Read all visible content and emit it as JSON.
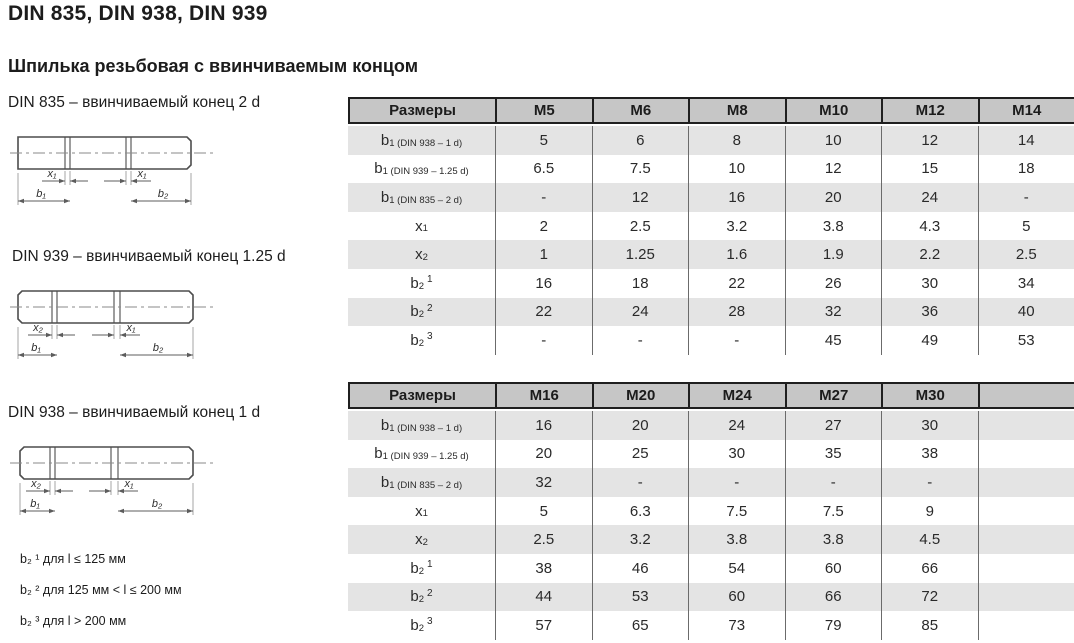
{
  "page": {
    "title": "DIN 835, DIN 938, DIN 939",
    "subtitle": "Шпилька резьбовая с ввинчиваемым концом"
  },
  "drawings": [
    {
      "caption": "DIN 835 – ввинчиваемый конец 2 d",
      "dim_x_left": "x₁",
      "dim_x_right": "x₁",
      "dim_b_left": "b₁",
      "dim_b_right": "b₂"
    },
    {
      "caption": "DIN 939 – ввинчиваемый конец 1.25 d",
      "dim_x_left": "x₂",
      "dim_x_right": "x₁",
      "dim_b_left": "b₁",
      "dim_b_right": "b₂"
    },
    {
      "caption": "DIN 938 – ввинчиваемый конец 1 d",
      "dim_x_left": "x₂",
      "dim_x_right": "x₁",
      "dim_b_left": "b₁",
      "dim_b_right": "b₂"
    }
  ],
  "footnotes": [
    "b₂ ¹ для l ≤ 125 мм",
    "b₂ ² для 125 мм < l ≤ 200 мм",
    "b₂ ³ для l > 200 мм"
  ],
  "colors": {
    "header_bg": "#c6c6c6",
    "row_alt_bg": "#e4e4e4",
    "border_dark": "#1f1f1f",
    "grid_line": "#6b6b6b"
  },
  "tables": [
    {
      "columns": [
        "Размеры",
        "M5",
        "M6",
        "M8",
        "M10",
        "M12",
        "M14"
      ],
      "rows": [
        {
          "label": {
            "base": "b",
            "sub": "1 (DIN 938 – 1 d)"
          },
          "values": [
            "5",
            "6",
            "8",
            "10",
            "12",
            "14"
          ]
        },
        {
          "label": {
            "base": "b",
            "sub": "1 (DIN 939 – 1.25 d)"
          },
          "values": [
            "6.5",
            "7.5",
            "10",
            "12",
            "15",
            "18"
          ]
        },
        {
          "label": {
            "base": "b",
            "sub": "1 (DIN 835 – 2 d)"
          },
          "values": [
            "-",
            "12",
            "16",
            "20",
            "24",
            "-"
          ]
        },
        {
          "label": {
            "base": "x",
            "sub": "1"
          },
          "values": [
            "2",
            "2.5",
            "3.2",
            "3.8",
            "4.3",
            "5"
          ]
        },
        {
          "label": {
            "base": "x",
            "sub": "2"
          },
          "values": [
            "1",
            "1.25",
            "1.6",
            "1.9",
            "2.2",
            "2.5"
          ]
        },
        {
          "label": {
            "base": "b",
            "sub": "2",
            "sup": "1"
          },
          "values": [
            "16",
            "18",
            "22",
            "26",
            "30",
            "34"
          ]
        },
        {
          "label": {
            "base": "b",
            "sub": "2",
            "sup": "2"
          },
          "values": [
            "22",
            "24",
            "28",
            "32",
            "36",
            "40"
          ]
        },
        {
          "label": {
            "base": "b",
            "sub": "2",
            "sup": "3"
          },
          "values": [
            "-",
            "-",
            "-",
            "45",
            "49",
            "53"
          ]
        }
      ]
    },
    {
      "columns": [
        "Размеры",
        "M16",
        "M20",
        "M24",
        "M27",
        "M30",
        ""
      ],
      "rows": [
        {
          "label": {
            "base": "b",
            "sub": "1 (DIN 938 – 1 d)"
          },
          "values": [
            "16",
            "20",
            "24",
            "27",
            "30",
            ""
          ]
        },
        {
          "label": {
            "base": "b",
            "sub": "1 (DIN 939 – 1.25 d)"
          },
          "values": [
            "20",
            "25",
            "30",
            "35",
            "38",
            ""
          ]
        },
        {
          "label": {
            "base": "b",
            "sub": "1 (DIN 835 – 2 d)"
          },
          "values": [
            "32",
            "-",
            "-",
            "-",
            "-",
            ""
          ]
        },
        {
          "label": {
            "base": "x",
            "sub": "1"
          },
          "values": [
            "5",
            "6.3",
            "7.5",
            "7.5",
            "9",
            ""
          ]
        },
        {
          "label": {
            "base": "x",
            "sub": "2"
          },
          "values": [
            "2.5",
            "3.2",
            "3.8",
            "3.8",
            "4.5",
            ""
          ]
        },
        {
          "label": {
            "base": "b",
            "sub": "2",
            "sup": "1"
          },
          "values": [
            "38",
            "46",
            "54",
            "60",
            "66",
            ""
          ]
        },
        {
          "label": {
            "base": "b",
            "sub": "2",
            "sup": "2"
          },
          "values": [
            "44",
            "53",
            "60",
            "66",
            "72",
            ""
          ]
        },
        {
          "label": {
            "base": "b",
            "sub": "2",
            "sup": "3"
          },
          "values": [
            "57",
            "65",
            "73",
            "79",
            "85",
            ""
          ]
        }
      ]
    }
  ]
}
